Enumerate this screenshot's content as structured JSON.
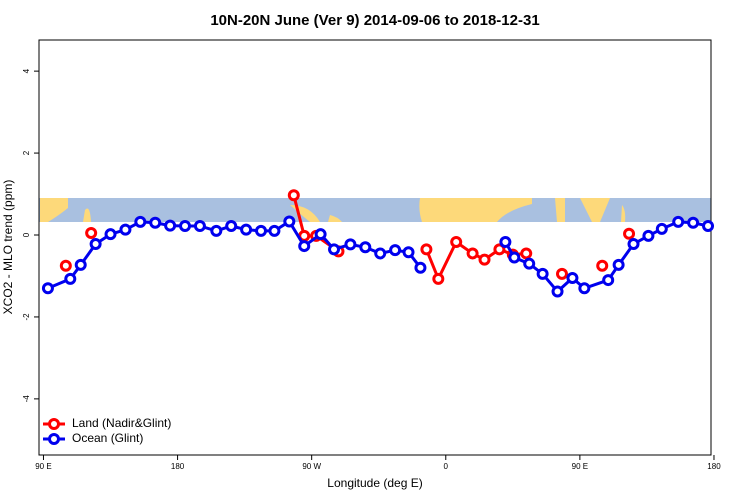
{
  "chart_data": {
    "type": "line",
    "title": "10N-20N June (Ver 9)   2014-09-06 to 2018-12-31",
    "xlabel": "Longitude (deg E)",
    "ylabel": "XCO2 - MLO trend (ppm)",
    "xlim": [
      87,
      538
    ],
    "ylim": [
      -5.37,
      4.76
    ],
    "xticks": [
      {
        "value": 90,
        "label": "90 E"
      },
      180,
      {
        "value": 270,
        "label": "90 W"
      },
      {
        "value": 360,
        "label": "0"
      },
      {
        "value": 450,
        "label": "90 E"
      },
      {
        "value": 540,
        "label": "180"
      }
    ],
    "yticks": [
      -4,
      -2,
      0,
      2,
      4
    ],
    "legend": "bottomleft",
    "series": [
      {
        "name": "Land (Nadir&Glint)",
        "color": "#ff0000",
        "x": [
          105,
          114,
          122,
          190,
          258,
          265,
          273,
          288,
          320,
          347,
          355,
          367,
          378,
          386,
          396,
          405,
          414,
          425,
          438,
          450,
          465,
          475,
          483
        ],
        "values": [
          -0.75,
          null,
          0.05,
          null,
          0.97,
          -0.02,
          -0.02,
          -0.4,
          null,
          -0.35,
          -1.07,
          -0.17,
          -0.45,
          -0.6,
          -0.35,
          -0.48,
          -0.45,
          null,
          -0.95,
          null,
          -0.75,
          null,
          0.03
        ]
      },
      {
        "name": "Ocean (Glint)",
        "color": "#0000ee",
        "x": [
          93,
          108,
          115,
          125,
          135,
          145,
          155,
          165,
          175,
          185,
          195,
          206,
          216,
          226,
          236,
          245,
          255,
          265,
          276,
          285,
          296,
          306,
          316,
          326,
          335,
          343,
          380,
          400,
          406,
          416,
          425,
          435,
          445,
          453,
          469,
          476,
          486,
          496,
          505,
          516,
          526,
          536
        ],
        "values": [
          -1.3,
          -1.07,
          -0.73,
          -0.22,
          0.02,
          0.13,
          0.32,
          0.3,
          0.23,
          0.22,
          0.22,
          0.1,
          0.22,
          0.13,
          0.1,
          0.1,
          0.33,
          -0.27,
          0.02,
          -0.35,
          -0.23,
          -0.3,
          -0.45,
          -0.37,
          -0.42,
          -0.8,
          null,
          -0.17,
          -0.55,
          -0.7,
          -0.95,
          -1.38,
          -1.05,
          -1.3,
          -1.1,
          -0.73,
          -0.22,
          -0.02,
          0.15,
          0.32,
          0.3,
          0.22
        ]
      }
    ]
  }
}
